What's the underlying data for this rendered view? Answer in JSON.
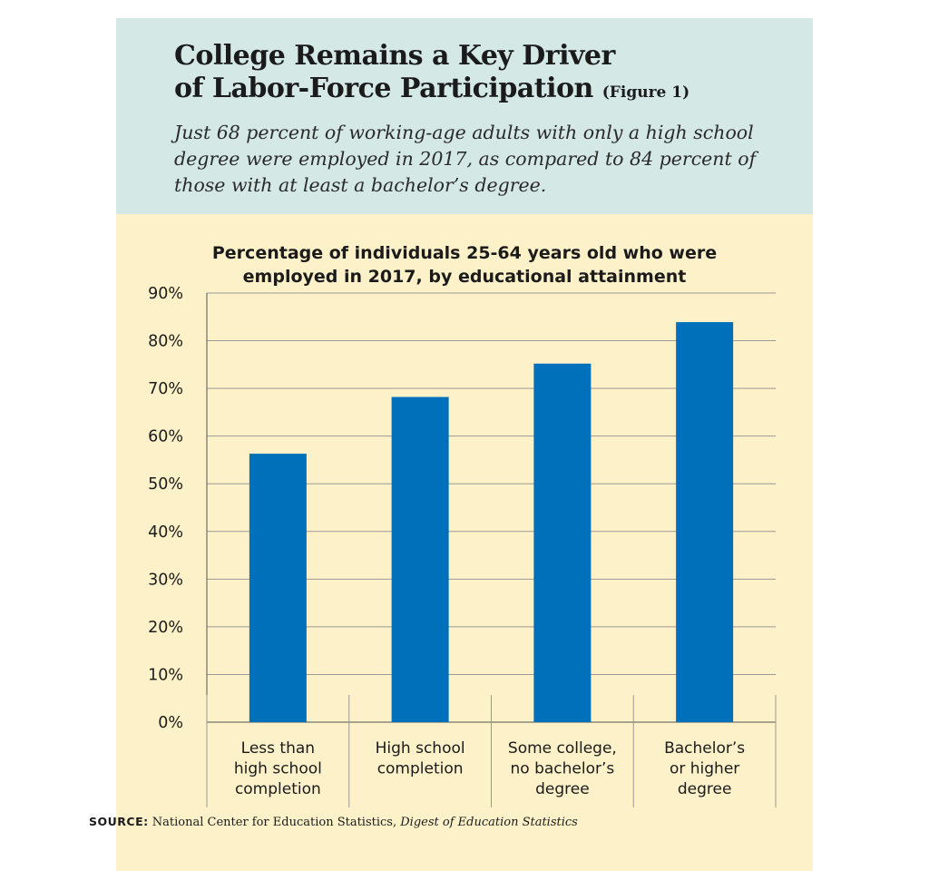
{
  "header": {
    "title_line1": "College Remains a Key Driver",
    "title_line2": "of Labor-Force Participation",
    "figure_label": "(Figure 1)",
    "subtitle": "Just 68 percent of working-age adults with only a high school degree were employed in 2017, as compared to 84 percent of those with at least a bachelor’s degree."
  },
  "colors": {
    "header_bg": "#d4e8e6",
    "body_bg": "#fcf1c8",
    "bar": "#0070bb",
    "grid": "#9a9a9a"
  },
  "chart_data": {
    "type": "bar",
    "title_line1": "Percentage of individuals 25-64 years old who were",
    "title_line2": "employed in 2017, by educational attainment",
    "categories": [
      [
        "Less than",
        "high school",
        "completion"
      ],
      [
        "High school",
        "completion"
      ],
      [
        "Some college,",
        "no bachelor’s",
        "degree"
      ],
      [
        "Bachelor’s",
        "or higher",
        "degree"
      ]
    ],
    "values": [
      56.3,
      68.2,
      75.2,
      83.9
    ],
    "yticks": [
      "0%",
      "10%",
      "20%",
      "30%",
      "40%",
      "50%",
      "60%",
      "70%",
      "80%",
      "90%"
    ],
    "ylim": [
      0,
      90
    ],
    "grid": true,
    "legend": "none"
  },
  "source": {
    "label": "SOURCE:",
    "text": "National Center for Education Statistics,",
    "publication": "Digest of Education Statistics"
  }
}
